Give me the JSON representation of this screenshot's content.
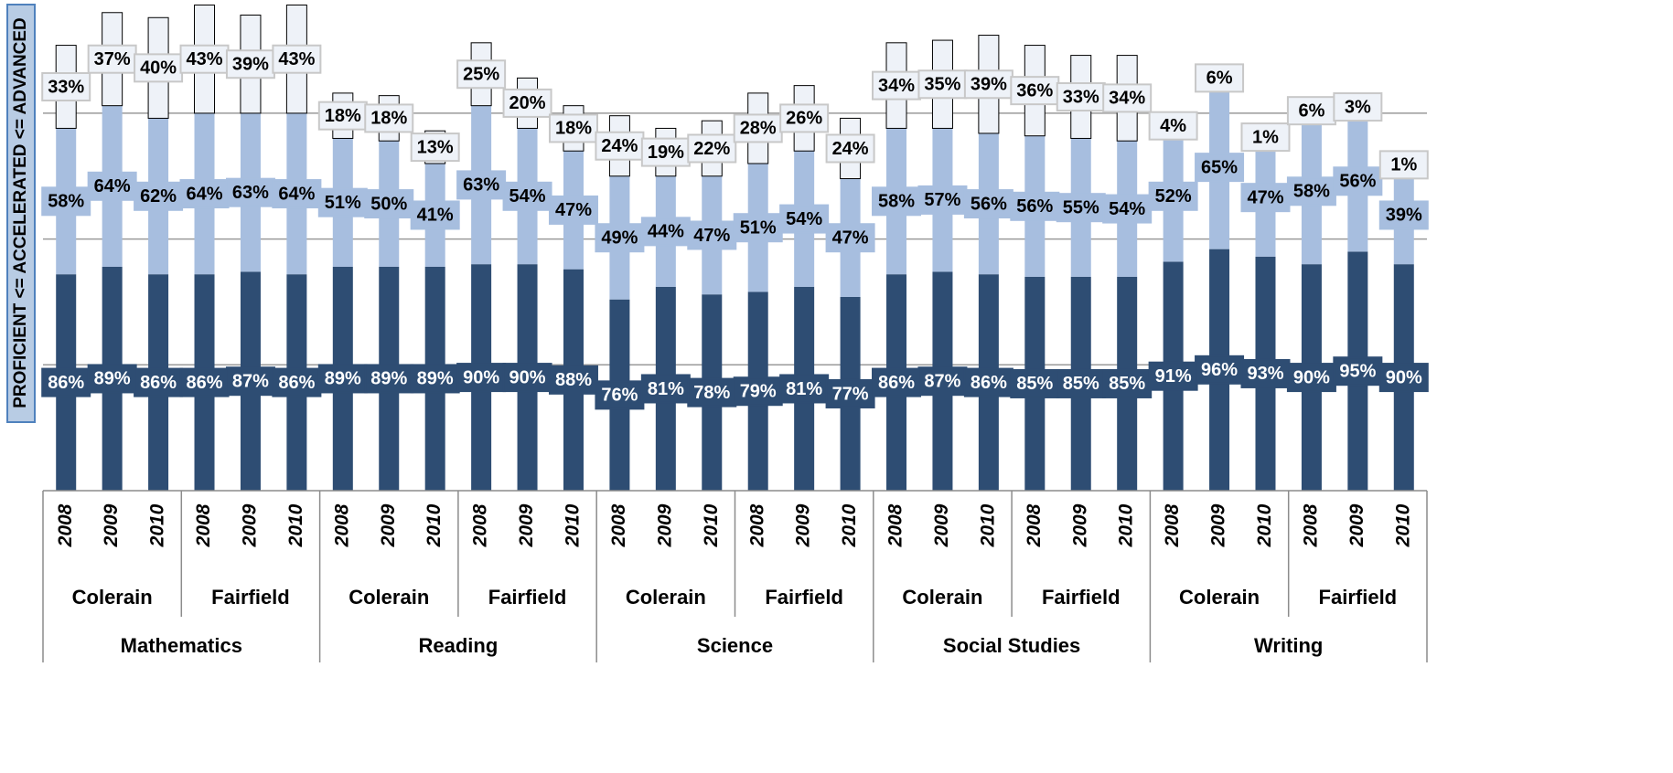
{
  "chart_data": {
    "type": "stacked_bar",
    "y_label": "PROFICIENT <= ACCELERATED <= ADVANCED",
    "categories": [
      "2008",
      "2009",
      "2010",
      "2008",
      "2009",
      "2010",
      "2008",
      "2009",
      "2010",
      "2008",
      "2009",
      "2010",
      "2008",
      "2009",
      "2010",
      "2008",
      "2009",
      "2010",
      "2008",
      "2009",
      "2010",
      "2008",
      "2009",
      "2010",
      "2008",
      "2009",
      "2010",
      "2008",
      "2009",
      "2010"
    ],
    "category_groups": [
      "Colerain",
      "Fairfield",
      "Colerain",
      "Fairfield",
      "Colerain",
      "Fairfield",
      "Colerain",
      "Fairfield",
      "Colerain",
      "Fairfield"
    ],
    "category_supergroups": [
      "Mathematics",
      "Reading",
      "Science",
      "Social Studies",
      "Writing"
    ],
    "ylim": [
      0,
      195
    ],
    "yticks": [
      50,
      100,
      150
    ],
    "grid": true,
    "tick_labels_shown": false,
    "series": [
      {
        "color": "#2e4d73",
        "label_color": "#ffffff",
        "values": [
          86,
          89,
          86,
          86,
          87,
          86,
          89,
          89,
          89,
          90,
          90,
          88,
          76,
          81,
          78,
          79,
          81,
          77,
          86,
          87,
          86,
          85,
          85,
          85,
          91,
          96,
          93,
          90,
          95,
          90
        ],
        "value_labels": [
          "86%",
          "89%",
          "86%",
          "86%",
          "87%",
          "86%",
          "89%",
          "89%",
          "89%",
          "90%",
          "90%",
          "88%",
          "76%",
          "81%",
          "78%",
          "79%",
          "81%",
          "77%",
          "86%",
          "87%",
          "86%",
          "85%",
          "85%",
          "85%",
          "91%",
          "96%",
          "93%",
          "90%",
          "95%",
          "90%"
        ]
      },
      {
        "color": "#a7bedf",
        "label_color": "#000000",
        "values": [
          58,
          64,
          62,
          64,
          63,
          64,
          51,
          50,
          41,
          63,
          54,
          47,
          49,
          44,
          47,
          51,
          54,
          47,
          58,
          57,
          56,
          56,
          55,
          54,
          52,
          65,
          47,
          58,
          56,
          39
        ],
        "value_labels": [
          "58%",
          "64%",
          "62%",
          "64%",
          "63%",
          "64%",
          "51%",
          "50%",
          "41%",
          "63%",
          "54%",
          "47%",
          "49%",
          "44%",
          "47%",
          "51%",
          "54%",
          "47%",
          "58%",
          "57%",
          "56%",
          "56%",
          "55%",
          "54%",
          "52%",
          "65%",
          "47%",
          "58%",
          "56%",
          "39%"
        ]
      },
      {
        "color": "#eef2f8",
        "label_color": "#000000",
        "values": [
          33,
          37,
          40,
          43,
          39,
          43,
          18,
          18,
          13,
          25,
          20,
          18,
          24,
          19,
          22,
          28,
          26,
          24,
          34,
          35,
          39,
          36,
          33,
          34,
          4,
          6,
          1,
          6,
          3,
          1
        ],
        "value_labels": [
          "33%",
          "37%",
          "40%",
          "43%",
          "39%",
          "43%",
          "18%",
          "18%",
          "13%",
          "25%",
          "20%",
          "18%",
          "24%",
          "19%",
          "22%",
          "28%",
          "26%",
          "24%",
          "34%",
          "35%",
          "39%",
          "36%",
          "33%",
          "34%",
          "4%",
          "6%",
          "1%",
          "6%",
          "3%",
          "1%"
        ]
      }
    ]
  }
}
